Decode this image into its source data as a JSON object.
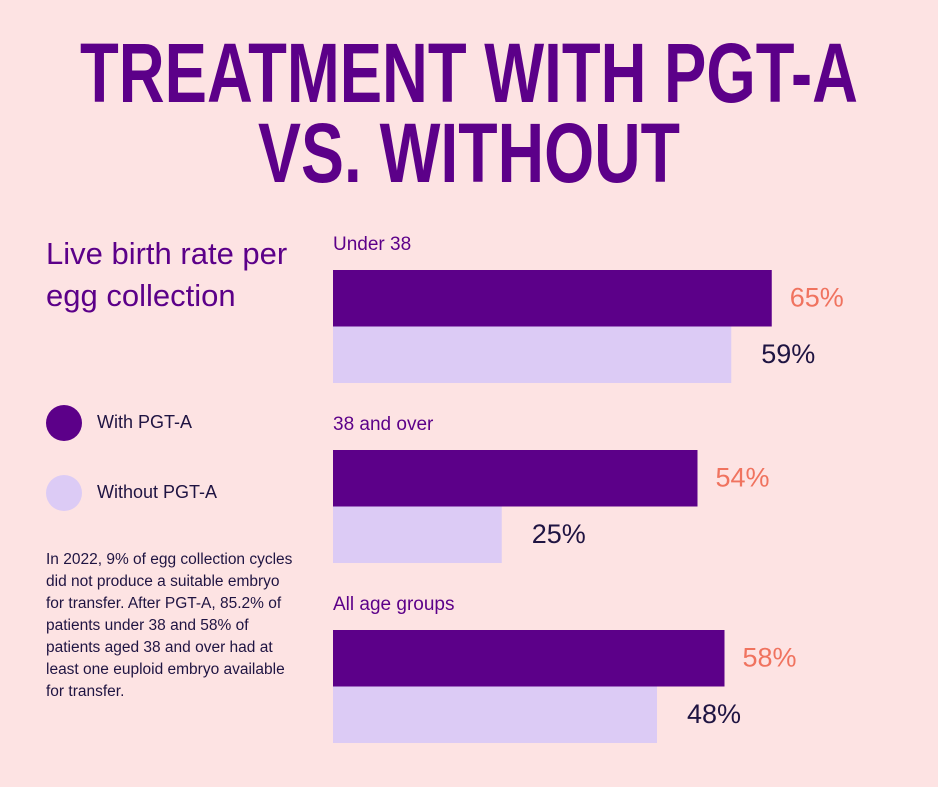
{
  "chart_data": {
    "type": "bar",
    "orientation": "horizontal",
    "title": [
      "TREATMENT WITH PGT-A",
      "VS. WITHOUT"
    ],
    "subtitle": "Live birth rate per egg collection",
    "categories": [
      "Under 38",
      "38 and over",
      "All age groups"
    ],
    "series": [
      {
        "name": "With PGT-A",
        "color": "#5c0089",
        "label_color": "#f0735f",
        "values": [
          65,
          54,
          58
        ],
        "value_labels": [
          "65%",
          "54%",
          "58%"
        ]
      },
      {
        "name": "Without PGT-A",
        "color": "#dccbf5",
        "label_color": "#1f1442",
        "values": [
          59,
          25,
          48
        ],
        "value_labels": [
          "59%",
          "25%",
          "48%"
        ]
      }
    ],
    "note": "In 2022, 9% of egg collection cycles did not produce a suitable embryo for transfer. After PGT-A, 85.2% of patients under 38 and 58% of patients aged 38 and over had at least one euploid embryo available for transfer."
  }
}
